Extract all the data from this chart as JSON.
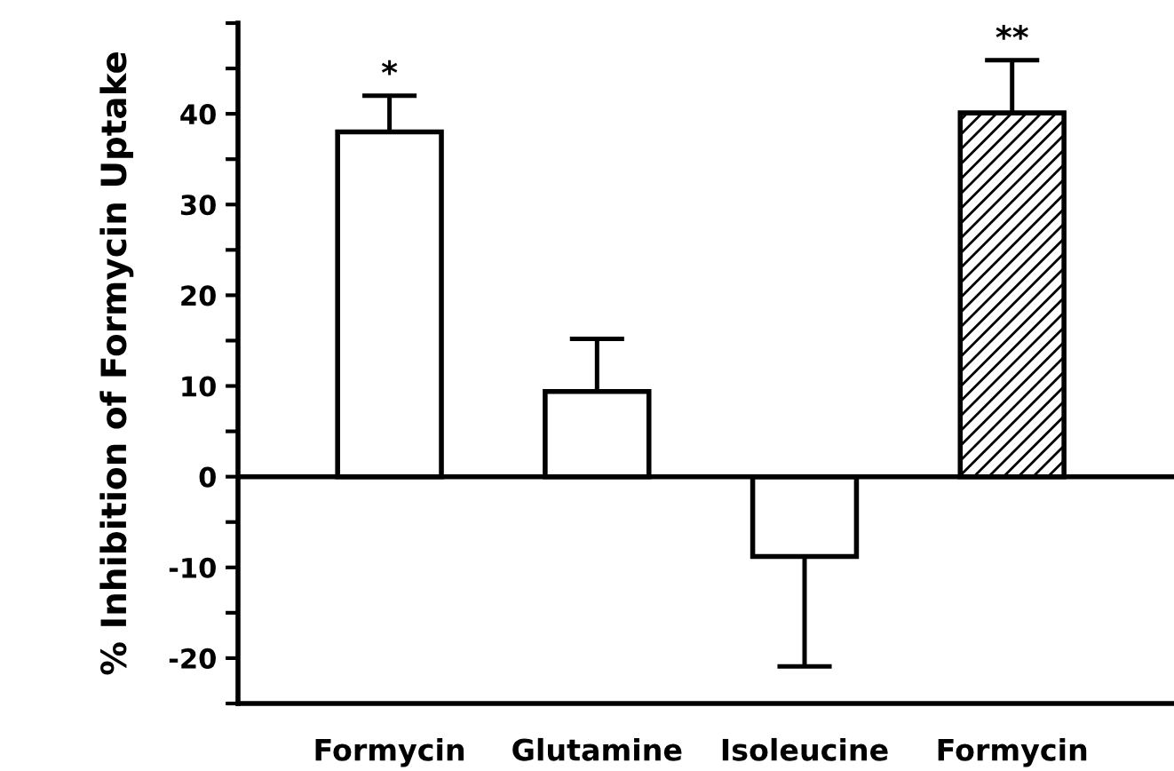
{
  "chart_data": {
    "type": "bar",
    "ylabel": "% Inhibition of Formycin Uptake",
    "categories": [
      "Formycin",
      "Glutamine",
      "Isoleucine",
      "Formycin"
    ],
    "values": [
      38,
      9.4,
      -8.8,
      40.1
    ],
    "colors": [
      "#ffffff",
      "#ffffff",
      "#ffffff",
      "#000000"
    ],
    "errors": [
      [
        38,
        42
      ],
      [
        9.4,
        15.2
      ],
      [
        -20.9,
        -8.8
      ],
      [
        40.1,
        45.9
      ]
    ],
    "ylim": [
      -25,
      50
    ],
    "yticks": [
      {
        "value": 50,
        "label": null
      },
      {
        "value": 45,
        "label": null
      },
      40,
      {
        "value": 35,
        "label": null
      },
      30,
      {
        "value": 25,
        "label": null
      },
      20,
      {
        "value": 15,
        "label": null
      },
      10,
      {
        "value": 5,
        "label": null
      },
      0,
      {
        "value": -5,
        "label": null
      },
      -10,
      {
        "value": -15,
        "label": null
      },
      -20,
      {
        "value": -25,
        "label": null
      }
    ],
    "ref_lines": [
      {
        "axis": "y",
        "value": 0,
        "color": "#000000"
      }
    ],
    "annotations": [
      "*",
      "**"
    ],
    "grid": false,
    "legend": false
  }
}
